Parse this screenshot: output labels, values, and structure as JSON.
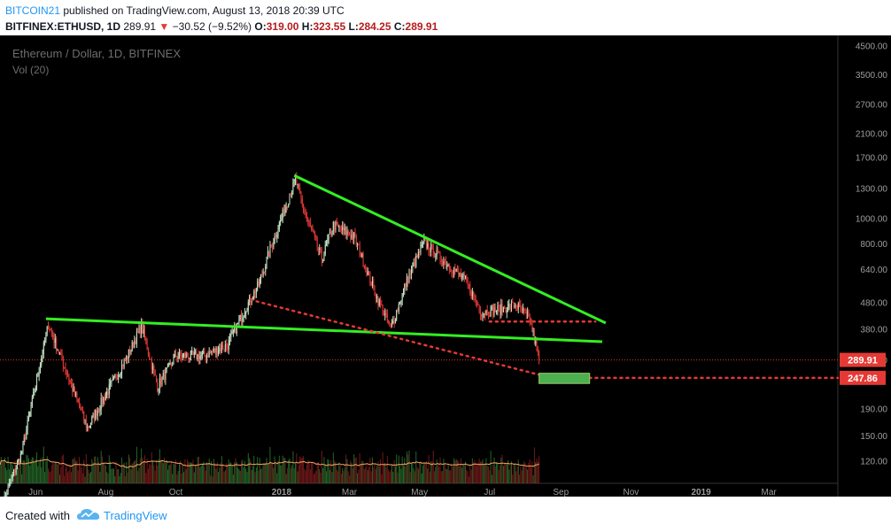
{
  "header": {
    "author": "BITCOIN21",
    "published": "published on TradingView.com, August 13, 2018 20:39 UTC",
    "symbol": "BITFINEX:ETHUSD, 1D",
    "last": "289.91",
    "change": "−30.52 (−9.52%)",
    "o_label": "O:",
    "o_value": "319.00",
    "h_label": "H:",
    "h_value": "323.55",
    "l_label": "L:",
    "l_value": "284.25",
    "c_label": "C:",
    "c_value": "289.91",
    "down_arrow_icon": "down-triangle-icon"
  },
  "footer": {
    "created_with": "Created with",
    "brand": "TradingView",
    "logo_icon": "tradingview-cloud-icon"
  },
  "chart_data": {
    "type": "candlestick",
    "title": "Ethereum / Dollar, 1D, BITFINEX",
    "indicator": "Vol (20)",
    "y_scale": "log",
    "ylim": [
      110,
      4700
    ],
    "y_ticks": [
      "4500.00",
      "3500.00",
      "2700.00",
      "2100.00",
      "1700.00",
      "1300.00",
      "1000.00",
      "800.00",
      "640.00",
      "480.00",
      "380.00",
      "290.00",
      "190.00",
      "150.00",
      "120.00"
    ],
    "x_ticks": [
      "Jun",
      "Aug",
      "Oct",
      "2018",
      "Mar",
      "May",
      "Jul",
      "Sep",
      "Nov",
      "2019",
      "Mar"
    ],
    "x_range": [
      "2017-05-01",
      "2019-04-30"
    ],
    "price_path": [
      {
        "date": "2017-05-01",
        "close": 78
      },
      {
        "date": "2017-05-20",
        "close": 130
      },
      {
        "date": "2017-06-12",
        "close": 395
      },
      {
        "date": "2017-06-25",
        "close": 280
      },
      {
        "date": "2017-07-16",
        "close": 160
      },
      {
        "date": "2017-08-05",
        "close": 230
      },
      {
        "date": "2017-08-20",
        "close": 300
      },
      {
        "date": "2017-09-01",
        "close": 390
      },
      {
        "date": "2017-09-15",
        "close": 230
      },
      {
        "date": "2017-10-01",
        "close": 300
      },
      {
        "date": "2017-10-25",
        "close": 300
      },
      {
        "date": "2017-11-15",
        "close": 330
      },
      {
        "date": "2017-11-30",
        "close": 450
      },
      {
        "date": "2017-12-12",
        "close": 560
      },
      {
        "date": "2017-12-22",
        "close": 760
      },
      {
        "date": "2018-01-13",
        "close": 1400
      },
      {
        "date": "2018-01-20",
        "close": 1080
      },
      {
        "date": "2018-02-05",
        "close": 700
      },
      {
        "date": "2018-02-15",
        "close": 940
      },
      {
        "date": "2018-03-05",
        "close": 850
      },
      {
        "date": "2018-03-25",
        "close": 500
      },
      {
        "date": "2018-04-06",
        "close": 380
      },
      {
        "date": "2018-04-20",
        "close": 580
      },
      {
        "date": "2018-05-05",
        "close": 810
      },
      {
        "date": "2018-05-20",
        "close": 700
      },
      {
        "date": "2018-06-10",
        "close": 580
      },
      {
        "date": "2018-06-24",
        "close": 440
      },
      {
        "date": "2018-07-10",
        "close": 450
      },
      {
        "date": "2018-07-24",
        "close": 470
      },
      {
        "date": "2018-08-05",
        "close": 410
      },
      {
        "date": "2018-08-13",
        "close": 289.91
      }
    ],
    "current_price": 289.91,
    "target_price": 247.86,
    "price_labels": [
      "289.91",
      "247.86"
    ],
    "annotations": [
      {
        "kind": "trendline",
        "color": "#33ee22",
        "style": "solid",
        "from": {
          "date": "2018-01-12",
          "price": 1450
        },
        "to": {
          "date": "2018-10-10",
          "price": 400
        }
      },
      {
        "kind": "trendline",
        "color": "#33ee22",
        "style": "solid",
        "from": {
          "date": "2017-06-10",
          "price": 415
        },
        "to": {
          "date": "2018-10-07",
          "price": 340
        }
      },
      {
        "kind": "trendline",
        "color": "#e53935",
        "style": "dotted",
        "from": {
          "date": "2017-12-05",
          "price": 490
        },
        "to": {
          "date": "2018-08-20",
          "price": 250
        }
      },
      {
        "kind": "hline",
        "color": "#e53935",
        "style": "dotted",
        "price": 405,
        "from_date": "2018-07-01",
        "to_date": "2018-10-01"
      },
      {
        "kind": "hline",
        "color": "#e53935",
        "style": "dotted",
        "price": 247.86,
        "from_date": "2018-09-15",
        "to_date": "2019-04-30"
      },
      {
        "kind": "target_box",
        "color": "#4caf50",
        "from": {
          "date": "2018-08-13",
          "price": 258
        },
        "to": {
          "date": "2018-09-26",
          "price": 236
        }
      }
    ],
    "colors": {
      "up": "#c8e6c9",
      "down": "#e53935",
      "volume_up": "#2e7d32",
      "volume_down": "#8e1f1f",
      "volume_ma": "#f4a460",
      "background": "#000000",
      "axis_text": "#9e9e9e",
      "current_line": "#e53935"
    }
  }
}
